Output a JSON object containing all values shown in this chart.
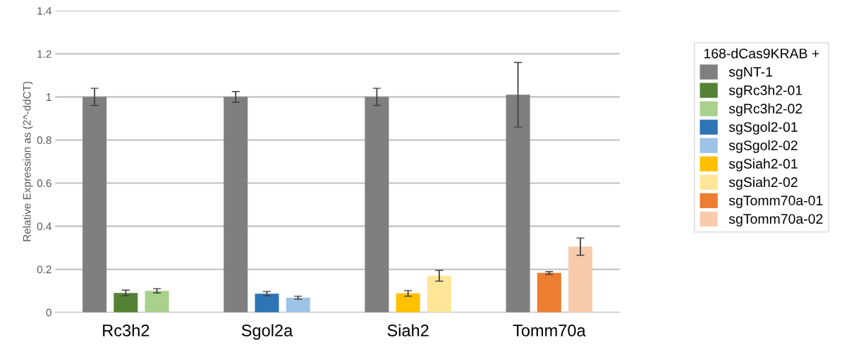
{
  "chart_data": {
    "type": "bar",
    "ylabel": "Relative Expression as (2^-ddCT)",
    "legend_title": "168-dCas9KRAB +",
    "categories": [
      "Rc3h2",
      "Sgol2a",
      "Siah2",
      "Tomm70a"
    ],
    "series": [
      {
        "name": "sgNT-1",
        "color": "#7f7f7f",
        "values": [
          1.0,
          1.0,
          1.0,
          1.01
        ],
        "errors": [
          0.04,
          0.025,
          0.04,
          0.15
        ]
      },
      {
        "name": "sgRc3h2-01",
        "color": "#548235",
        "values": [
          0.09,
          null,
          null,
          null
        ],
        "errors": [
          0.013,
          null,
          null,
          null
        ]
      },
      {
        "name": "sgRc3h2-02",
        "color": "#a9d18e",
        "values": [
          0.1,
          null,
          null,
          null
        ],
        "errors": [
          0.01,
          null,
          null,
          null
        ]
      },
      {
        "name": "sgSgol2-01",
        "color": "#2e75b6",
        "values": [
          null,
          0.087,
          null,
          null
        ],
        "errors": [
          null,
          0.01,
          null,
          null
        ]
      },
      {
        "name": "sgSgol2-02",
        "color": "#9dc3e6",
        "values": [
          null,
          0.068,
          null,
          null
        ],
        "errors": [
          null,
          0.007,
          null,
          null
        ]
      },
      {
        "name": "sgSiah2-01",
        "color": "#ffc000",
        "values": [
          null,
          null,
          0.088,
          null
        ],
        "errors": [
          null,
          null,
          0.013,
          null
        ]
      },
      {
        "name": "sgSiah2-02",
        "color": "#ffe699",
        "values": [
          null,
          null,
          0.17,
          null
        ],
        "errors": [
          null,
          null,
          0.025,
          null
        ]
      },
      {
        "name": "sgTomm70a-01",
        "color": "#ed7d31",
        "values": [
          null,
          null,
          null,
          0.183
        ],
        "errors": [
          null,
          null,
          null,
          0.006
        ]
      },
      {
        "name": "sgTomm70a-02",
        "color": "#f8cbad",
        "values": [
          null,
          null,
          null,
          0.305
        ],
        "errors": [
          null,
          null,
          null,
          0.04
        ]
      }
    ],
    "ylim": [
      0,
      1.4
    ],
    "yticks": [
      0,
      0.2,
      0.4,
      0.6,
      0.8,
      1,
      1.2,
      1.4
    ],
    "grid": "y",
    "legend": "right"
  }
}
